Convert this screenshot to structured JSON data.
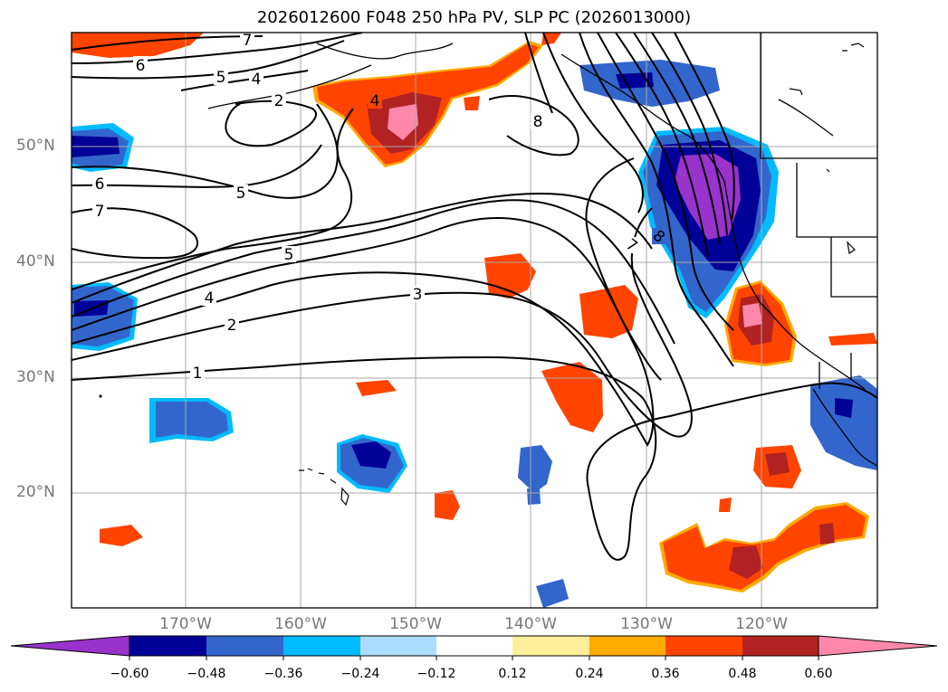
{
  "title": "2026012600 F048 250 hPa PV, SLP PC (2026013000)",
  "lat_labels": [
    "50°N",
    "40°N",
    "30°N",
    "20°N"
  ],
  "lon_labels": [
    "170°W",
    "160°W",
    "150°W",
    "140°W",
    "130°W",
    "120°W"
  ],
  "colorbar": {
    "ticks": [
      "−0.60",
      "−0.48",
      "−0.36",
      "−0.24",
      "−0.12",
      "0.12",
      "0.24",
      "0.36",
      "0.48",
      "0.60"
    ],
    "colors": [
      "#9933cc",
      "#000099",
      "#3366cc",
      "#00bbff",
      "#aaddff",
      "#ffffff",
      "#ffee99",
      "#ffaa00",
      "#ff4400",
      "#b22222",
      "#ff88aa"
    ]
  },
  "contour_labels": [
    "7",
    "6",
    "5",
    "4",
    "2",
    "4",
    "8",
    "6",
    "7",
    "5",
    "5",
    "4",
    "2",
    "3",
    "1",
    "7",
    "8"
  ],
  "colors": {
    "neg_strong": "#000099",
    "neg_mid": "#3366cc",
    "neg_light": "#00bbff",
    "neg_extreme": "#9933cc",
    "pos_light": "#ffee99",
    "pos_mid": "#ffaa00",
    "pos_strong": "#ff4400",
    "pos_dark": "#b22222",
    "pos_extreme": "#ff88aa"
  }
}
